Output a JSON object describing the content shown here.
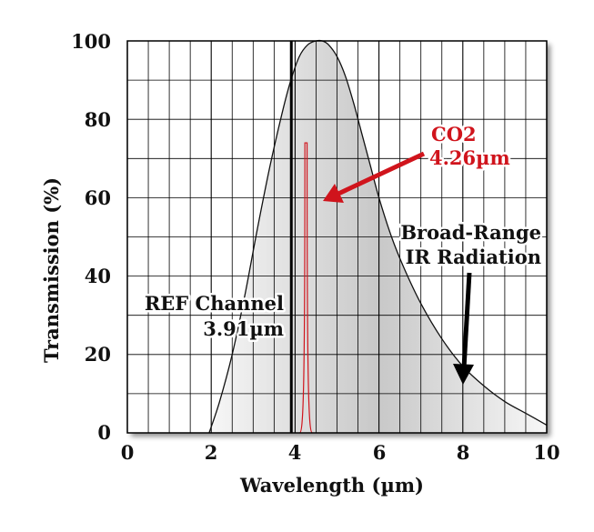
{
  "chart_data": {
    "type": "line",
    "title": "",
    "xlabel": "Wavelength (µm)",
    "ylabel": "Transmission (%)",
    "xlim": [
      0,
      10
    ],
    "ylim": [
      0,
      100
    ],
    "x_ticks": [
      0,
      2,
      4,
      6,
      8,
      10
    ],
    "y_ticks": [
      0,
      20,
      40,
      60,
      80,
      100
    ],
    "x_tick_labels": [
      "0",
      "2",
      "4",
      "6",
      "8",
      "10"
    ],
    "y_tick_labels": [
      "0",
      "20",
      "40",
      "60",
      "80",
      "100"
    ],
    "grid": true,
    "series": [
      {
        "name": "Broad-Range IR Radiation",
        "style": "filled-curve",
        "x": [
          1.95,
          2.2,
          2.5,
          2.8,
          3.1,
          3.4,
          3.7,
          3.9,
          4.1,
          4.3,
          4.5,
          4.65,
          4.8,
          5.0,
          5.2,
          5.4,
          5.6,
          5.8,
          6.0,
          6.3,
          6.6,
          7.0,
          7.5,
          8.0,
          8.5,
          9.0,
          9.5,
          10.0
        ],
        "values": [
          0,
          8,
          20,
          35,
          52,
          68,
          82,
          90,
          96,
          99,
          100,
          100,
          99,
          96,
          91,
          84,
          76,
          68,
          60,
          50,
          42,
          33,
          24,
          17,
          12,
          8,
          5,
          2
        ]
      },
      {
        "name": "CO2 4.26µm",
        "style": "narrow-peak",
        "color": "#d0141c",
        "center": 4.26,
        "peak": 74
      }
    ],
    "ref_line": {
      "x": 3.91,
      "label": "REF Channel 3.91µm"
    },
    "annotations": {
      "co2_line1": "CO2",
      "co2_line2": "4.26µm",
      "ref_line1": "REF Channel",
      "ref_line2": "3.91µm",
      "broad_line1": "Broad-Range",
      "broad_line2": "IR Radiation"
    },
    "colors": {
      "accent": "#d0141c",
      "curve": "#111111",
      "fill_light": "#f6f6f6",
      "fill_dark": "#c9c9c9"
    }
  }
}
